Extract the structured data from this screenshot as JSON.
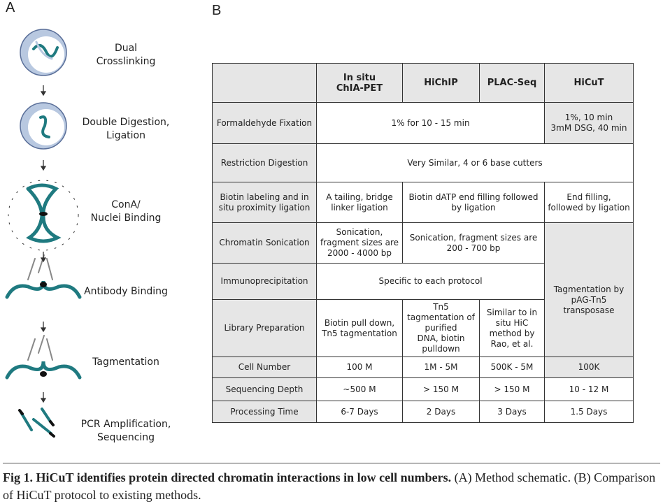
{
  "panels": [
    "A",
    "B"
  ],
  "steps": [
    "Dual\nCrosslinking",
    "Double Digestion,\nLigation",
    "ConA/\nNuclei Binding",
    "Antibody Binding",
    "Tagmentation",
    "PCR Amplification,\nSequencing"
  ],
  "table": {
    "header": [
      "",
      "In situ\nChIA-PET",
      "HiChIP",
      "PLAC-Seq",
      "HiCuT"
    ],
    "rows": [
      {
        "label": "Formaldehyde Fixation",
        "cells": [
          "1% for 10 - 15 min",
          "1%, 10 min\n3mM DSG, 40 min"
        ]
      },
      {
        "label": "Restriction Digestion",
        "cells": [
          "Very Similar, 4 or 6 base cutters"
        ]
      },
      {
        "label": "Biotin labeling and in\nsitu proximity ligation",
        "cells": [
          "A tailing, bridge\nlinker ligation",
          "Biotin dATP end filling followed\nby ligation",
          "End filling,\nfollowed by ligation"
        ]
      },
      {
        "label": "Chromatin Sonication",
        "cells": [
          "Sonication,\nfragment sizes are\n2000 - 4000 bp",
          "Sonication, fragment sizes are\n200 - 700 bp",
          "Tagmentation by\npAG-Tn5\ntransposase"
        ]
      },
      {
        "label": "Immunoprecipitation",
        "cells": [
          "Specific to each protocol"
        ]
      },
      {
        "label": "Library Preparation",
        "cells": [
          "Biotin pull down,\nTn5 tagmentation",
          "Tn5\ntagmentation of\npurified\nDNA, biotin\npulldown",
          "Similar to in\nsitu HiC\nmethod by\nRao, et al."
        ]
      },
      {
        "label": "Cell Number",
        "cells": [
          "100 M",
          "1M - 5M",
          "500K - 5M",
          "100K"
        ]
      },
      {
        "label": "Sequencing Depth",
        "cells": [
          "~500 M",
          "> 150 M",
          "> 150 M",
          "10 - 12 M"
        ]
      },
      {
        "label": "Processing Time",
        "cells": [
          "6-7 Days",
          "2 Days",
          "3 Days",
          "1.5 Days"
        ]
      }
    ]
  },
  "caption": {
    "bold": "Fig 1. HiCuT identifies protein directed chromatin interactions in low cell numbers.",
    "text": " (A) Method schematic. (B) Comparison of HiCuT protocol to existing methods."
  }
}
